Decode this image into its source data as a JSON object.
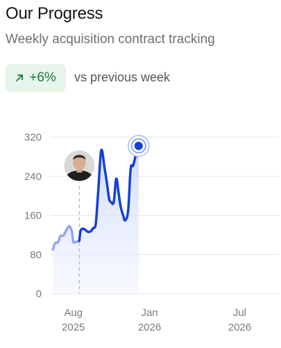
{
  "header": {
    "title": "Our Progress",
    "subtitle": "Weekly acquisition contract tracking"
  },
  "trend": {
    "value": "+6%",
    "direction": "up",
    "icon": "arrow-up-right-icon",
    "comparison": "vs previous week",
    "color": "#1f7a3d",
    "background": "#e6f4ea"
  },
  "chart_data": {
    "type": "line",
    "title": "",
    "xlabel": "",
    "ylabel": "",
    "ylim": [
      0,
      320
    ],
    "yticks": [
      0,
      80,
      160,
      240,
      320
    ],
    "xticks": [
      {
        "date": "2025-08-01",
        "label_month": "Aug",
        "label_year": "2025"
      },
      {
        "date": "2026-01-01",
        "label_month": "Jan",
        "label_year": "2026"
      },
      {
        "date": "2026-07-01",
        "label_month": "Jul",
        "label_year": "2026"
      }
    ],
    "xlim": [
      "2025-06-15",
      "2026-09-15"
    ],
    "grid": "horizontal",
    "series": [
      {
        "color": "#1540d6",
        "points": [
          [
            "2025-06-21",
            90
          ],
          [
            "2025-06-25",
            103
          ],
          [
            "2025-07-01",
            105
          ],
          [
            "2025-07-06",
            118
          ],
          [
            "2025-07-12",
            119
          ],
          [
            "2025-07-18",
            130
          ],
          [
            "2025-07-24",
            138
          ],
          [
            "2025-07-29",
            127
          ],
          [
            "2025-08-01",
            106
          ],
          [
            "2025-08-07",
            106
          ],
          [
            "2025-08-13",
            108
          ],
          [
            "2025-08-16",
            130
          ],
          [
            "2025-08-23",
            132
          ],
          [
            "2025-08-29",
            127
          ],
          [
            "2025-09-04",
            127
          ],
          [
            "2025-09-10",
            134
          ],
          [
            "2025-09-15",
            143
          ],
          [
            "2025-09-20",
            210
          ],
          [
            "2025-09-26",
            293
          ],
          [
            "2025-10-03",
            255
          ],
          [
            "2025-10-08",
            222
          ],
          [
            "2025-10-12",
            193
          ],
          [
            "2025-10-16",
            187
          ],
          [
            "2025-10-21",
            187
          ],
          [
            "2025-10-26",
            235
          ],
          [
            "2025-10-31",
            205
          ],
          [
            "2025-11-04",
            178
          ],
          [
            "2025-11-09",
            160
          ],
          [
            "2025-11-13",
            150
          ],
          [
            "2025-11-19",
            170
          ],
          [
            "2025-11-24",
            255
          ],
          [
            "2025-11-29",
            262
          ],
          [
            "2025-12-06",
            290
          ],
          [
            "2025-12-10",
            302
          ]
        ],
        "highlight_start": "2025-08-13",
        "current_point": [
          "2025-12-10",
          302
        ]
      }
    ],
    "marker": {
      "date": "2025-08-13",
      "avatar": "person-avatar"
    }
  }
}
